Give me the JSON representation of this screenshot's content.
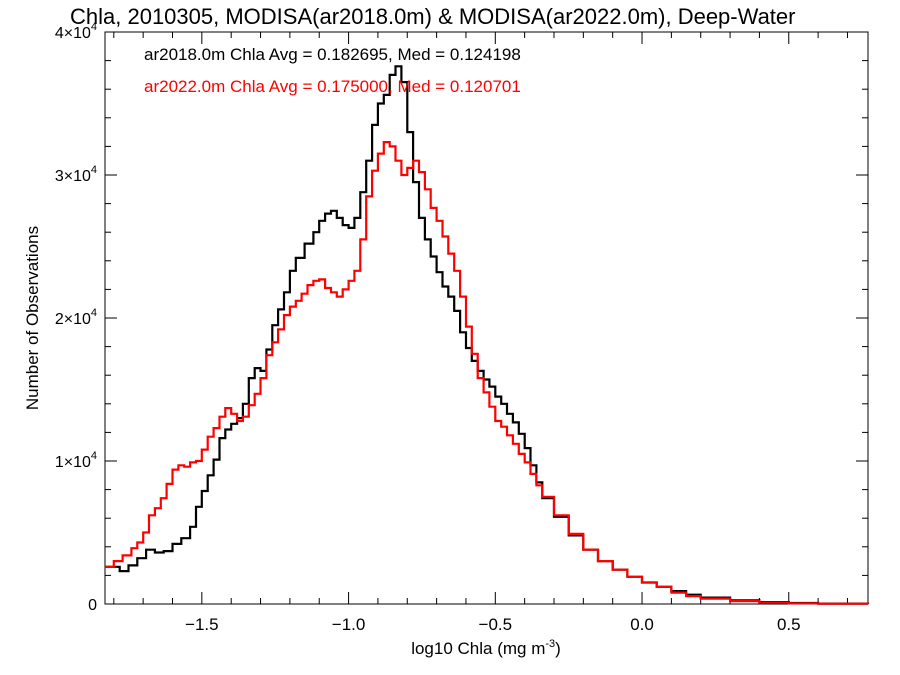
{
  "chart_data": {
    "type": "line",
    "title": "Chla, 2010305, MODISA(ar2018.0m) & MODISA(ar2022.0m), Deep-Water",
    "xlabel": "log10 Chla (mg m",
    "xlabel_sup": "-3",
    "xlabel_tail": ")",
    "ylabel": "Number of Observations",
    "xlim": [
      -1.83,
      0.77
    ],
    "ylim": [
      0,
      40000
    ],
    "grid": false,
    "legend_position": "top-left",
    "x_ticks": [
      {
        "value": -1.5,
        "label": "-1.5"
      },
      {
        "value": -1.0,
        "label": "-1.0"
      },
      {
        "value": -0.5,
        "label": "-0.5"
      },
      {
        "value": 0.0,
        "label": "0.0"
      },
      {
        "value": 0.5,
        "label": "0.5"
      }
    ],
    "y_ticks": [
      {
        "value": 0,
        "mant": "0",
        "exp": ""
      },
      {
        "value": 10000,
        "mant": "1×10",
        "exp": "4"
      },
      {
        "value": 20000,
        "mant": "2×10",
        "exp": "4"
      },
      {
        "value": 30000,
        "mant": "3×10",
        "exp": "4"
      },
      {
        "value": 40000,
        "mant": "4×10",
        "exp": "4"
      }
    ],
    "annotations": [
      {
        "text": "ar2018.0m Chla Avg = 0.182695, Med = 0.124198",
        "color": "#000000"
      },
      {
        "text": "ar2022.0m Chla Avg = 0.175000, Med = 0.120701",
        "color": "#ff0000"
      }
    ],
    "series": [
      {
        "name": "ar2018.0m",
        "color": "#000000",
        "points": [
          [
            -1.83,
            2600
          ],
          [
            -1.78,
            2300
          ],
          [
            -1.75,
            2700
          ],
          [
            -1.72,
            3200
          ],
          [
            -1.69,
            3800
          ],
          [
            -1.66,
            3600
          ],
          [
            -1.63,
            3700
          ],
          [
            -1.6,
            4200
          ],
          [
            -1.57,
            4600
          ],
          [
            -1.54,
            5400
          ],
          [
            -1.52,
            6800
          ],
          [
            -1.5,
            7900
          ],
          [
            -1.48,
            9000
          ],
          [
            -1.46,
            10100
          ],
          [
            -1.44,
            11600
          ],
          [
            -1.42,
            12200
          ],
          [
            -1.4,
            12600
          ],
          [
            -1.38,
            13000
          ],
          [
            -1.36,
            14000
          ],
          [
            -1.34,
            15800
          ],
          [
            -1.32,
            16500
          ],
          [
            -1.3,
            16300
          ],
          [
            -1.28,
            17800
          ],
          [
            -1.26,
            19500
          ],
          [
            -1.24,
            20600
          ],
          [
            -1.22,
            21800
          ],
          [
            -1.2,
            23300
          ],
          [
            -1.18,
            24200
          ],
          [
            -1.15,
            25200
          ],
          [
            -1.12,
            26000
          ],
          [
            -1.1,
            26800
          ],
          [
            -1.08,
            27300
          ],
          [
            -1.06,
            27500
          ],
          [
            -1.04,
            27000
          ],
          [
            -1.02,
            26500
          ],
          [
            -1.0,
            26300
          ],
          [
            -0.98,
            27000
          ],
          [
            -0.96,
            28800
          ],
          [
            -0.94,
            31000
          ],
          [
            -0.92,
            33500
          ],
          [
            -0.9,
            35000
          ],
          [
            -0.88,
            35600
          ],
          [
            -0.86,
            37000
          ],
          [
            -0.84,
            37600
          ],
          [
            -0.82,
            36500
          ],
          [
            -0.8,
            33000
          ],
          [
            -0.78,
            29500
          ],
          [
            -0.76,
            27000
          ],
          [
            -0.74,
            25500
          ],
          [
            -0.72,
            24300
          ],
          [
            -0.7,
            23200
          ],
          [
            -0.68,
            22200
          ],
          [
            -0.66,
            21500
          ],
          [
            -0.64,
            20500
          ],
          [
            -0.62,
            19000
          ],
          [
            -0.6,
            17900
          ],
          [
            -0.58,
            17000
          ],
          [
            -0.56,
            16300
          ],
          [
            -0.54,
            15700
          ],
          [
            -0.52,
            15200
          ],
          [
            -0.5,
            14500
          ],
          [
            -0.48,
            14000
          ],
          [
            -0.46,
            13300
          ],
          [
            -0.44,
            12700
          ],
          [
            -0.42,
            11900
          ],
          [
            -0.4,
            10900
          ],
          [
            -0.38,
            9700
          ],
          [
            -0.36,
            8500
          ],
          [
            -0.34,
            7400
          ],
          [
            -0.3,
            6100
          ],
          [
            -0.25,
            4800
          ],
          [
            -0.2,
            3800
          ],
          [
            -0.15,
            3000
          ],
          [
            -0.1,
            2400
          ],
          [
            -0.05,
            1900
          ],
          [
            0.0,
            1500
          ],
          [
            0.05,
            1200
          ],
          [
            0.1,
            900
          ],
          [
            0.15,
            650
          ],
          [
            0.2,
            450
          ],
          [
            0.3,
            250
          ],
          [
            0.4,
            130
          ],
          [
            0.5,
            70
          ],
          [
            0.6,
            30
          ],
          [
            0.77,
            10
          ]
        ]
      },
      {
        "name": "ar2022.0m",
        "color": "#ff0000",
        "points": [
          [
            -1.83,
            2600
          ],
          [
            -1.8,
            3000
          ],
          [
            -1.77,
            3400
          ],
          [
            -1.74,
            3900
          ],
          [
            -1.72,
            4300
          ],
          [
            -1.7,
            5000
          ],
          [
            -1.68,
            6200
          ],
          [
            -1.66,
            6700
          ],
          [
            -1.64,
            7400
          ],
          [
            -1.62,
            8400
          ],
          [
            -1.6,
            9400
          ],
          [
            -1.58,
            9700
          ],
          [
            -1.56,
            9600
          ],
          [
            -1.54,
            9900
          ],
          [
            -1.52,
            10000
          ],
          [
            -1.5,
            10800
          ],
          [
            -1.48,
            11700
          ],
          [
            -1.46,
            12300
          ],
          [
            -1.44,
            13100
          ],
          [
            -1.42,
            13700
          ],
          [
            -1.4,
            13300
          ],
          [
            -1.38,
            12800
          ],
          [
            -1.36,
            13100
          ],
          [
            -1.34,
            13900
          ],
          [
            -1.32,
            14700
          ],
          [
            -1.3,
            15800
          ],
          [
            -1.28,
            17400
          ],
          [
            -1.26,
            18300
          ],
          [
            -1.24,
            19200
          ],
          [
            -1.22,
            20200
          ],
          [
            -1.2,
            20800
          ],
          [
            -1.18,
            21200
          ],
          [
            -1.16,
            21700
          ],
          [
            -1.14,
            22300
          ],
          [
            -1.12,
            22600
          ],
          [
            -1.1,
            22700
          ],
          [
            -1.08,
            22100
          ],
          [
            -1.06,
            21800
          ],
          [
            -1.04,
            21500
          ],
          [
            -1.02,
            22000
          ],
          [
            -1.0,
            22600
          ],
          [
            -0.98,
            23300
          ],
          [
            -0.96,
            25500
          ],
          [
            -0.94,
            28500
          ],
          [
            -0.92,
            30300
          ],
          [
            -0.9,
            31500
          ],
          [
            -0.88,
            32300
          ],
          [
            -0.86,
            32000
          ],
          [
            -0.84,
            31000
          ],
          [
            -0.82,
            30000
          ],
          [
            -0.8,
            30500
          ],
          [
            -0.78,
            31000
          ],
          [
            -0.76,
            30200
          ],
          [
            -0.74,
            29000
          ],
          [
            -0.72,
            27700
          ],
          [
            -0.7,
            26800
          ],
          [
            -0.68,
            25700
          ],
          [
            -0.66,
            24500
          ],
          [
            -0.64,
            23300
          ],
          [
            -0.62,
            21500
          ],
          [
            -0.6,
            19400
          ],
          [
            -0.58,
            17500
          ],
          [
            -0.56,
            15800
          ],
          [
            -0.54,
            14800
          ],
          [
            -0.52,
            13800
          ],
          [
            -0.5,
            12800
          ],
          [
            -0.48,
            12400
          ],
          [
            -0.46,
            11800
          ],
          [
            -0.44,
            11200
          ],
          [
            -0.42,
            10500
          ],
          [
            -0.4,
            9900
          ],
          [
            -0.38,
            9100
          ],
          [
            -0.36,
            8300
          ],
          [
            -0.34,
            7500
          ],
          [
            -0.3,
            6200
          ],
          [
            -0.25,
            4900
          ],
          [
            -0.2,
            3800
          ],
          [
            -0.15,
            3000
          ],
          [
            -0.1,
            2400
          ],
          [
            -0.05,
            1900
          ],
          [
            0.0,
            1500
          ],
          [
            0.05,
            1200
          ],
          [
            0.1,
            800
          ],
          [
            0.15,
            550
          ],
          [
            0.2,
            380
          ],
          [
            0.3,
            200
          ],
          [
            0.4,
            100
          ],
          [
            0.5,
            50
          ],
          [
            0.6,
            20
          ],
          [
            0.77,
            10
          ]
        ]
      }
    ]
  }
}
